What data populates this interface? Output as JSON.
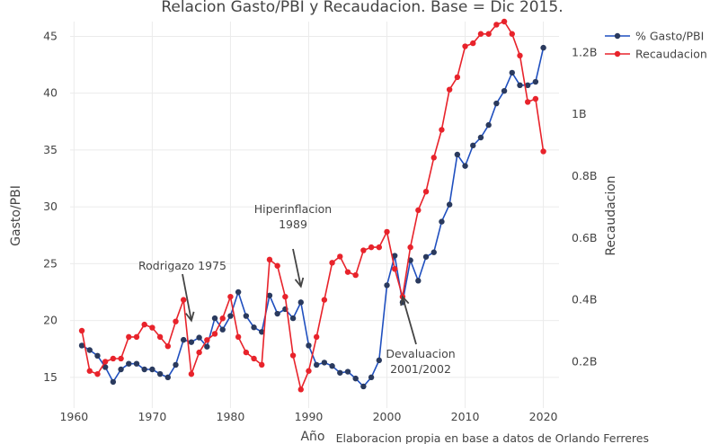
{
  "chart_data": {
    "type": "line",
    "title": "Relacion Gasto/PBI y Recaudacion. Base = Dic 2015.",
    "xlabel": "Año",
    "ylabel": "Gasto/PBI",
    "y2label": "Recaudacion",
    "caption": "Elaboracion propia en base a datos de Orlando Ferreres",
    "xlim": [
      1959.5,
      2022
    ],
    "ylim": [
      12.3,
      46.3
    ],
    "y2lim": [
      0.05,
      1.3
    ],
    "xticks": [
      1960,
      1970,
      1980,
      1990,
      2000,
      2010,
      2020
    ],
    "yticks": [
      15,
      20,
      25,
      30,
      35,
      40,
      45
    ],
    "y2ticks": [
      0.2,
      0.4,
      0.6,
      0.8,
      1.0,
      1.2
    ],
    "y2ticklabels": [
      "0.2B",
      "0.4B",
      "0.6B",
      "0.8B",
      "1B",
      "1.2B"
    ],
    "legend_position": "top-right",
    "grid": true,
    "series": [
      {
        "name": "% Gasto/PBI",
        "axis": "y",
        "color": "#1f4fbf",
        "marker_color": "#2a3a5e",
        "x": [
          1961,
          1962,
          1963,
          1964,
          1965,
          1966,
          1967,
          1968,
          1969,
          1970,
          1971,
          1972,
          1973,
          1974,
          1975,
          1976,
          1977,
          1978,
          1979,
          1980,
          1981,
          1982,
          1983,
          1984,
          1985,
          1986,
          1987,
          1988,
          1989,
          1990,
          1991,
          1992,
          1993,
          1994,
          1995,
          1996,
          1997,
          1998,
          1999,
          2000,
          2001,
          2002,
          2003,
          2004,
          2005,
          2006,
          2007,
          2008,
          2009,
          2010,
          2011,
          2012,
          2013,
          2014,
          2015,
          2016,
          2017,
          2018,
          2019,
          2020
        ],
        "values": [
          17.8,
          17.4,
          16.9,
          15.9,
          14.6,
          15.7,
          16.2,
          16.2,
          15.7,
          15.7,
          15.3,
          15.0,
          16.1,
          18.3,
          18.1,
          18.5,
          17.7,
          20.2,
          19.2,
          20.4,
          22.5,
          20.4,
          19.4,
          19.0,
          22.2,
          20.6,
          21.0,
          20.2,
          21.6,
          17.8,
          16.1,
          16.3,
          16.0,
          15.4,
          15.5,
          14.9,
          14.2,
          15.0,
          16.5,
          23.1,
          25.7,
          21.6,
          25.3,
          23.5,
          25.6,
          26.0,
          28.7,
          30.2,
          34.6,
          33.6,
          35.4,
          36.1,
          37.2,
          39.1,
          40.2,
          41.8,
          40.7,
          40.7,
          41.0,
          44.0
        ]
      },
      {
        "name": "Recaudacion",
        "axis": "y2",
        "color": "#e8232b",
        "marker_color": "#e8232b",
        "x": [
          1961,
          1962,
          1963,
          1964,
          1965,
          1966,
          1967,
          1968,
          1969,
          1970,
          1971,
          1972,
          1973,
          1974,
          1975,
          1976,
          1977,
          1978,
          1979,
          1980,
          1981,
          1982,
          1983,
          1984,
          1985,
          1986,
          1987,
          1988,
          1989,
          1990,
          1991,
          1992,
          1993,
          1994,
          1995,
          1996,
          1997,
          1998,
          1999,
          2000,
          2001,
          2002,
          2003,
          2004,
          2005,
          2006,
          2007,
          2008,
          2009,
          2010,
          2011,
          2012,
          2013,
          2014,
          2015,
          2016,
          2017,
          2018,
          2019,
          2020
        ],
        "values": [
          0.3,
          0.17,
          0.16,
          0.2,
          0.21,
          0.21,
          0.28,
          0.28,
          0.32,
          0.31,
          0.28,
          0.25,
          0.33,
          0.4,
          0.16,
          0.23,
          0.27,
          0.29,
          0.34,
          0.41,
          0.28,
          0.23,
          0.21,
          0.19,
          0.53,
          0.51,
          0.41,
          0.22,
          0.11,
          0.17,
          0.28,
          0.4,
          0.52,
          0.54,
          0.49,
          0.48,
          0.56,
          0.57,
          0.57,
          0.62,
          0.5,
          0.41,
          0.57,
          0.69,
          0.75,
          0.86,
          0.95,
          1.08,
          1.12,
          1.22,
          1.23,
          1.26,
          1.26,
          1.29,
          1.3,
          1.26,
          1.19,
          1.04,
          1.05,
          0.88
        ]
      }
    ],
    "annotations": [
      {
        "lines": [
          "Rodrigazo 1975"
        ],
        "x": 1975,
        "y": 20.0,
        "axis": "y"
      },
      {
        "lines": [
          "Hiperinflacion",
          "1989"
        ],
        "x": 1989,
        "y": 23.0,
        "axis": "y"
      },
      {
        "lines": [
          "Devaluacion",
          "2001/2002"
        ],
        "x": 2002,
        "y": 0.41,
        "axis": "y2"
      }
    ]
  }
}
